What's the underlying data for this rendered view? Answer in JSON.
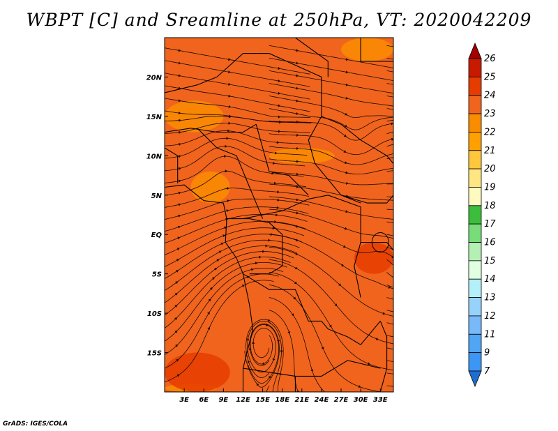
{
  "title": "WBPT [C] and Sreamline at 250hPa, VT: 2020042209",
  "credit": "GrADS: IGES/COLA",
  "chart_data": {
    "type": "heatmap",
    "title": "WBPT [C] and Sreamline at 250hPa, VT: 2020042209",
    "variable": "WBPT [C]",
    "level": "250hPa",
    "valid_time": "2020042209",
    "lon_range": [
      0,
      35
    ],
    "lat_range": [
      -20,
      25
    ],
    "x_ticks": [
      {
        "value": 3,
        "label": "3E"
      },
      {
        "value": 6,
        "label": "6E"
      },
      {
        "value": 9,
        "label": "9E"
      },
      {
        "value": 12,
        "label": "12E"
      },
      {
        "value": 15,
        "label": "15E"
      },
      {
        "value": 18,
        "label": "18E"
      },
      {
        "value": 21,
        "label": "21E"
      },
      {
        "value": 24,
        "label": "24E"
      },
      {
        "value": 27,
        "label": "27E"
      },
      {
        "value": 30,
        "label": "30E"
      },
      {
        "value": 33,
        "label": "33E"
      }
    ],
    "y_ticks": [
      {
        "value": 20,
        "label": "20N"
      },
      {
        "value": 15,
        "label": "15N"
      },
      {
        "value": 10,
        "label": "10N"
      },
      {
        "value": 5,
        "label": "5N"
      },
      {
        "value": 0,
        "label": "EQ"
      },
      {
        "value": -5,
        "label": "5S"
      },
      {
        "value": -10,
        "label": "10S"
      },
      {
        "value": -15,
        "label": "15S"
      }
    ],
    "dominant_value": 23.5,
    "warm_regions": [
      {
        "name": "southeast-warm-patch",
        "lon": [
          29,
          35
        ],
        "lat": [
          -5,
          -1
        ],
        "value": 24.5
      },
      {
        "name": "southwest-corner",
        "lon": [
          0,
          10
        ],
        "lat": [
          -20,
          -15
        ],
        "value": 24
      }
    ],
    "cool_regions": [
      {
        "name": "northwest-patch",
        "lon": [
          0,
          9
        ],
        "lat": [
          13,
          17
        ],
        "value": 22.5
      },
      {
        "name": "gulf-guinea-patch",
        "lon": [
          4,
          10
        ],
        "lat": [
          4,
          8
        ],
        "value": 22.5
      },
      {
        "name": "central-band",
        "lon": [
          16,
          26
        ],
        "lat": [
          9,
          11
        ],
        "value": 22.5
      },
      {
        "name": "northeast-corner",
        "lon": [
          27,
          35
        ],
        "lat": [
          22,
          25
        ],
        "value": 22.5
      },
      {
        "name": "southwest-strip",
        "lon": [
          0,
          8
        ],
        "lat": [
          -20,
          -19
        ],
        "value": 22
      }
    ],
    "colorbar": {
      "labels": [
        "26",
        "25",
        "24",
        "23",
        "22",
        "21",
        "20",
        "19",
        "18",
        "17",
        "16",
        "15",
        "14",
        "13",
        "12",
        "11",
        "9",
        "7"
      ],
      "colors": [
        "#a00000",
        "#c81a00",
        "#e63c00",
        "#f0641e",
        "#fa8c00",
        "#ffa000",
        "#ffc83c",
        "#ffe682",
        "#fffac0",
        "#3cbe3c",
        "#78dc78",
        "#b4f0b4",
        "#e1ffe1",
        "#b4f0fa",
        "#96d2fa",
        "#78b9fa",
        "#50a5f5",
        "#3c96f5",
        "#1e6ed2"
      ]
    }
  }
}
